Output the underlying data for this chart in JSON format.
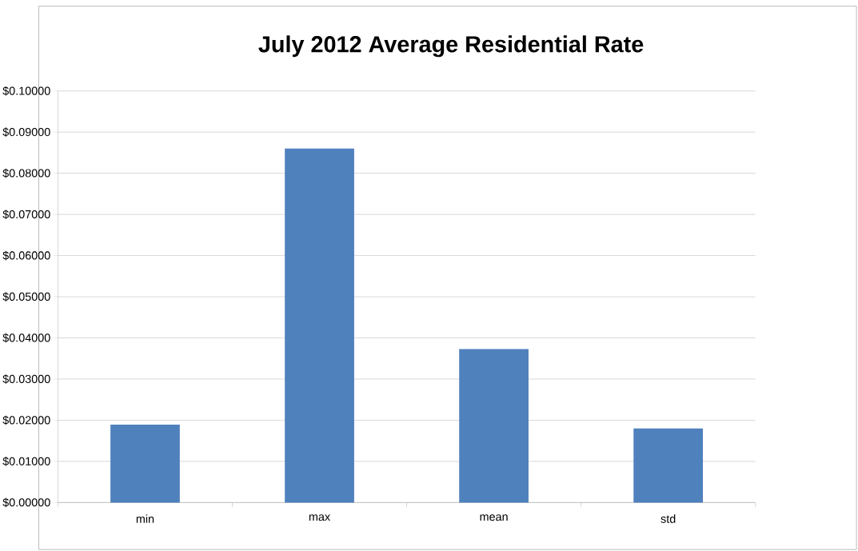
{
  "chart_data": {
    "type": "bar",
    "title": "July 2012 Average Residential Rate",
    "categories": [
      "min",
      "max",
      "mean",
      "std"
    ],
    "values": [
      0.0189,
      0.086,
      0.0373,
      0.018
    ],
    "color": "#4f81bd",
    "ylim": [
      0,
      0.1
    ],
    "yticks": [
      {
        "value": 0,
        "label": "$0.00000"
      },
      {
        "value": 0.01,
        "label": "$0.01000"
      },
      {
        "value": 0.02,
        "label": "$0.02000"
      },
      {
        "value": 0.03,
        "label": "$0.03000"
      },
      {
        "value": 0.04,
        "label": "$0.04000"
      },
      {
        "value": 0.05,
        "label": "$0.05000"
      },
      {
        "value": 0.06,
        "label": "$0.06000"
      },
      {
        "value": 0.07,
        "label": "$0.07000"
      },
      {
        "value": 0.08,
        "label": "$0.08000"
      },
      {
        "value": 0.09,
        "label": "$0.09000"
      },
      {
        "value": 0.1,
        "label": "$0.10000"
      }
    ],
    "grid": "y"
  }
}
